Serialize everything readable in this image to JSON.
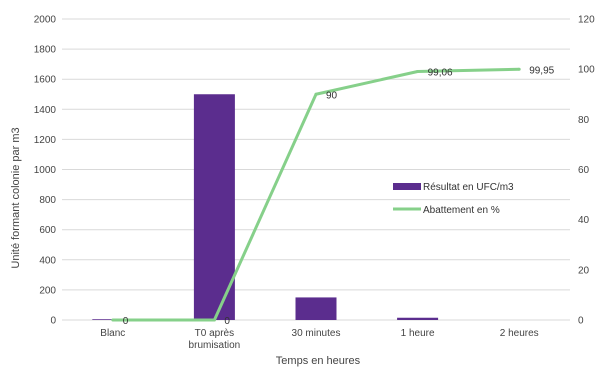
{
  "chart_data": {
    "type": "bar",
    "categories": [
      "Blanc",
      "T0 après\nbrumisation",
      "30 minutes",
      "1 heure",
      "2 heures"
    ],
    "series": [
      {
        "name": "Résultat en UFC/m3",
        "type": "bar",
        "axis": "left",
        "values": [
          5,
          1500,
          150,
          15,
          0
        ],
        "color": "#5b2d8e"
      },
      {
        "name": "Abattement en %",
        "type": "line",
        "axis": "right",
        "values": [
          0,
          0,
          90,
          99.06,
          99.95
        ],
        "labels": [
          "0",
          "0",
          "90",
          "99,06",
          "99,95"
        ],
        "color": "#86d08a"
      }
    ],
    "title": "",
    "xlabel": "Temps en heures",
    "ylabel": "Unité formant colonie par m3",
    "ylim": [
      0,
      2000
    ],
    "yticks": [
      0,
      200,
      400,
      600,
      800,
      1000,
      1200,
      1400,
      1600,
      1800,
      2000
    ],
    "y2lim": [
      0,
      120
    ],
    "y2ticks": [
      0,
      20,
      40,
      60,
      80,
      100,
      120
    ],
    "grid": true,
    "legend": "right"
  }
}
